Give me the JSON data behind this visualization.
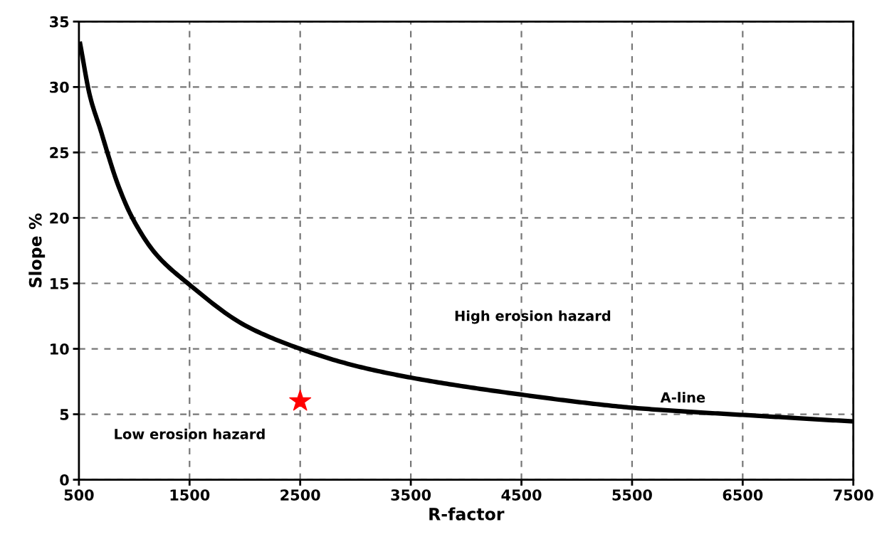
{
  "chart_data": {
    "type": "line",
    "xlabel": "R-factor",
    "ylabel": "Slope %",
    "xlim": [
      500,
      7500
    ],
    "ylim": [
      0,
      35
    ],
    "xticks": [
      500,
      1500,
      2500,
      3500,
      4500,
      5500,
      6500,
      7500
    ],
    "yticks": [
      0,
      5,
      10,
      15,
      20,
      25,
      30,
      35
    ],
    "grid": true,
    "series": [
      {
        "color": "#000000",
        "marker": "none",
        "line_style": "solid",
        "x": [
          511,
          600,
          700,
          757,
          850,
          983,
          1200,
          1485,
          2000,
          2500,
          3000,
          3500,
          4000,
          4500,
          5000,
          5500,
          6000,
          6500,
          7000,
          7500
        ],
        "values": [
          33.3,
          29.3,
          26.6,
          25,
          22.6,
          20,
          17.2,
          15,
          11.8,
          10,
          8.7,
          7.8,
          7.1,
          6.5,
          5.95,
          5.5,
          5.2,
          4.95,
          4.7,
          4.45
        ]
      },
      {
        "type": "scatter",
        "color": "#ff0000",
        "marker": "star",
        "x": [
          2500
        ],
        "values": [
          6
        ]
      }
    ],
    "annotations": [
      "High erosion hazard",
      "Low erosion hazard",
      "A-line"
    ]
  }
}
